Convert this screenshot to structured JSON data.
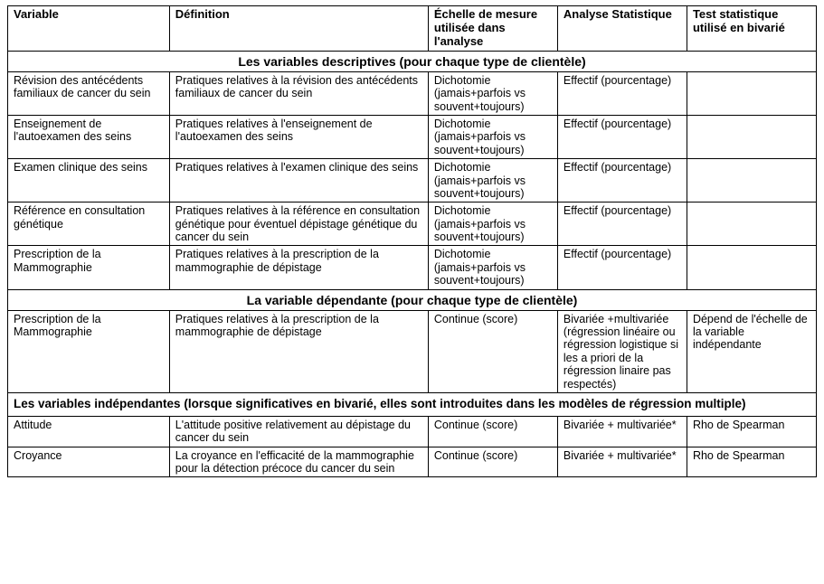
{
  "headers": {
    "variable": "Variable",
    "definition": "Définition",
    "echelle": "Échelle de mesure utilisée dans l'analyse",
    "analyse": "Analyse Statistique",
    "test": "Test statistique utilisé en bivarié"
  },
  "sections": [
    {
      "title": "Les variables descriptives (pour chaque type de clientèle)",
      "align": "center",
      "rows": [
        {
          "variable": "Révision des antécédents familiaux de cancer du sein",
          "definition": "Pratiques relatives à la révision des antécédents familiaux de cancer du sein",
          "echelle": "Dichotomie (jamais+parfois vs souvent+toujours)",
          "analyse": "Effectif (pourcentage)",
          "test": ""
        },
        {
          "variable": "Enseignement de l'autoexamen des seins",
          "definition": "Pratiques relatives à l'enseignement de l'autoexamen des seins",
          "echelle": "Dichotomie (jamais+parfois vs souvent+toujours)",
          "analyse": "Effectif (pourcentage)",
          "test": ""
        },
        {
          "variable": "Examen clinique des seins",
          "definition": "Pratiques relatives à l'examen clinique des seins",
          "echelle": "Dichotomie (jamais+parfois vs souvent+toujours)",
          "analyse": "Effectif (pourcentage)",
          "test": ""
        },
        {
          "variable": "Référence en consultation génétique",
          "definition": "Pratiques relatives à la référence en consultation génétique pour éventuel dépistage génétique du cancer du sein",
          "echelle": "Dichotomie (jamais+parfois vs souvent+toujours)",
          "analyse": "Effectif (pourcentage)",
          "test": ""
        },
        {
          "variable": "Prescription de la Mammographie",
          "definition": "Pratiques relatives à la prescription de la mammographie de dépistage",
          "echelle": "Dichotomie (jamais+parfois vs souvent+toujours)",
          "analyse": "Effectif (pourcentage)",
          "test": ""
        }
      ]
    },
    {
      "title": "La variable dépendante (pour chaque type de clientèle)",
      "align": "center",
      "rows": [
        {
          "variable": "Prescription de la Mammographie",
          "definition": "Pratiques relatives à la prescription de la mammographie de dépistage",
          "echelle": "Continue (score)",
          "analyse": "Bivariée +multivariée (régression linéaire ou régression logistique si les a priori de la régression linaire pas respectés)",
          "test": "Dépend de l'échelle de la variable indépendante"
        }
      ]
    },
    {
      "title": "Les variables indépendantes (lorsque significatives en bivarié, elles sont introduites dans les modèles de régression multiple)",
      "align": "left",
      "rows": [
        {
          "variable": "Attitude",
          "definition": "L'attitude positive relativement au dépistage du cancer du sein",
          "echelle": "Continue (score)",
          "analyse": "Bivariée + multivariée*",
          "test": "Rho de Spearman"
        },
        {
          "variable": "Croyance",
          "definition": "La croyance en l'efficacité de la mammographie pour la détection précoce du cancer du sein",
          "echelle": "Continue (score)",
          "analyse": "Bivariée + multivariée*",
          "test": "Rho de Spearman"
        }
      ]
    }
  ],
  "style": {
    "border_color": "#000000",
    "background_color": "#ffffff",
    "text_color": "#000000",
    "header_fontsize": 13,
    "body_fontsize": 12.5,
    "section_fontsize": 14,
    "font_family": "Arial"
  }
}
